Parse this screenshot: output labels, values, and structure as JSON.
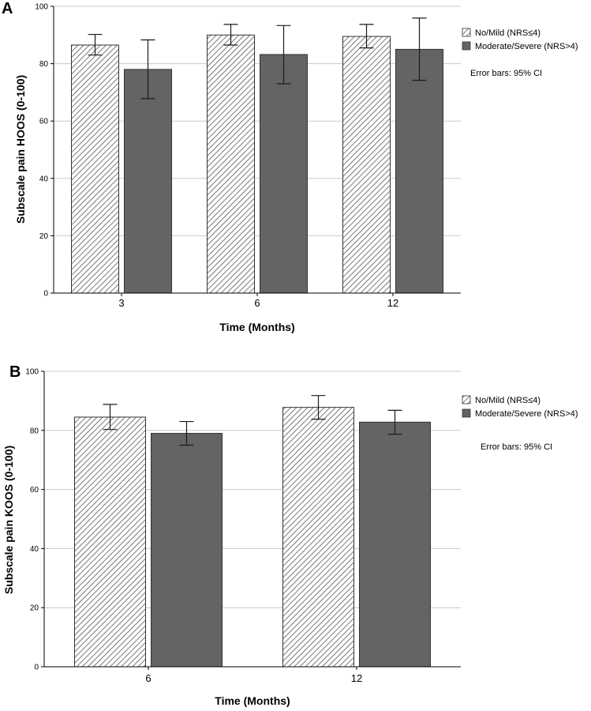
{
  "colors": {
    "bar_solid": "#646464",
    "bar_hatch_bg": "#ffffff",
    "bar_hatch_line": "#555555",
    "grid": "#c8c8c8",
    "axis": "#000000",
    "error_bar": "#1a1a1a"
  },
  "chart_data": [
    {
      "type": "bar",
      "panel_label": "A",
      "xlabel": "Time (Months)",
      "ylabel": "Subscale pain HOOS (0-100)",
      "ylim": [
        0,
        100
      ],
      "yticks": [
        0,
        20,
        40,
        60,
        80,
        100
      ],
      "categories": [
        "3",
        "6",
        "12"
      ],
      "series": [
        {
          "name": "No/Mild (NRS≤4)",
          "pattern": "hatch",
          "values": [
            86.5,
            90.0,
            89.5
          ],
          "ci_low": [
            83.0,
            86.5,
            85.5
          ],
          "ci_high": [
            90.2,
            93.7,
            93.7
          ]
        },
        {
          "name": "Moderate/Severe (NRS>4)",
          "pattern": "solid",
          "values": [
            78.0,
            83.2,
            85.0
          ],
          "ci_low": [
            67.8,
            73.0,
            74.2
          ],
          "ci_high": [
            88.3,
            93.3,
            95.9
          ]
        }
      ],
      "note": "Error bars: 95% CI",
      "grid": true,
      "legend_position": "right"
    },
    {
      "type": "bar",
      "panel_label": "B",
      "xlabel": "Time (Months)",
      "ylabel": "Subscale pain KOOS (0-100)",
      "ylim": [
        0,
        100
      ],
      "yticks": [
        0,
        20,
        40,
        60,
        80,
        100
      ],
      "categories": [
        "6",
        "12"
      ],
      "series": [
        {
          "name": "No/Mild (NRS≤4)",
          "pattern": "hatch",
          "values": [
            84.5,
            87.8
          ],
          "ci_low": [
            80.3,
            83.8
          ],
          "ci_high": [
            88.8,
            91.8
          ]
        },
        {
          "name": "Moderate/Severe (NRS>4)",
          "pattern": "solid",
          "values": [
            79.0,
            82.8
          ],
          "ci_low": [
            75.0,
            78.7
          ],
          "ci_high": [
            83.0,
            86.8
          ]
        }
      ],
      "note": "Error bars: 95% CI",
      "grid": true,
      "legend_position": "right"
    }
  ]
}
